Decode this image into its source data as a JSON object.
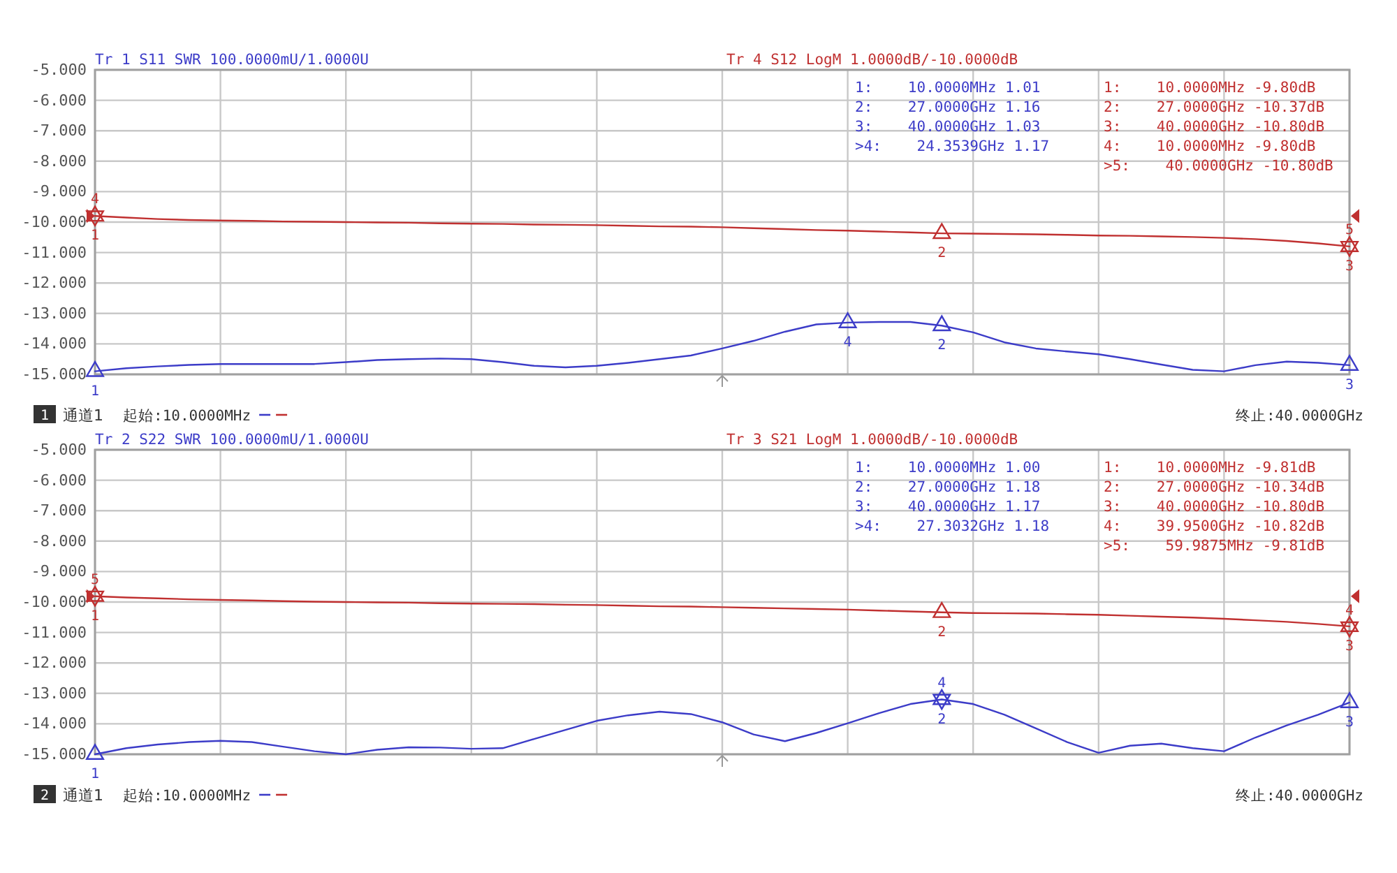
{
  "chart_data": [
    {
      "type": "line",
      "ylim": [
        -15,
        -5
      ],
      "yticks": [
        {
          "value": -5,
          "label": "-5.000"
        },
        {
          "value": -6,
          "label": "-6.000"
        },
        {
          "value": -7,
          "label": "-7.000"
        },
        {
          "value": -8,
          "label": "-8.000"
        },
        {
          "value": -9,
          "label": "-9.000"
        },
        {
          "value": -10,
          "label": "-10.000"
        },
        {
          "value": -11,
          "label": "-11.000"
        },
        {
          "value": -12,
          "label": "-12.000"
        },
        {
          "value": -13,
          "label": "-13.000"
        },
        {
          "value": -14,
          "label": "-14.000"
        },
        {
          "value": -15,
          "label": "-15.000"
        }
      ],
      "categories": [
        null,
        null,
        null,
        null,
        null,
        null,
        null,
        null,
        null,
        null,
        null,
        null,
        null,
        null,
        null,
        null,
        null,
        null,
        null,
        null,
        null,
        null,
        null,
        null,
        null,
        null,
        null,
        null,
        null,
        null,
        null,
        null,
        null,
        null,
        null,
        null,
        null,
        null,
        null,
        null,
        null
      ],
      "tick_labels": "y",
      "grid": true,
      "marker": "none",
      "line_style": "solid",
      "series": [
        {
          "name": "Tr 1  S11 SWR 100.0000mU/1.0000U",
          "color": "#3c3cc8",
          "values": [
            -14.9,
            -14.8,
            -14.74,
            -14.69,
            -14.66,
            -14.66,
            -14.66,
            -14.66,
            -14.6,
            -14.53,
            -14.5,
            -14.48,
            -14.5,
            -14.6,
            -14.72,
            -14.77,
            -14.72,
            -14.62,
            -14.5,
            -14.38,
            -14.15,
            -13.9,
            -13.6,
            -13.36,
            -13.3,
            -13.28,
            -13.28,
            -13.4,
            -13.62,
            -13.95,
            -14.15,
            -14.25,
            -14.34,
            -14.5,
            -14.68,
            -14.85,
            -14.9,
            -14.7,
            -14.58,
            -14.62,
            -14.7
          ]
        },
        {
          "name": "Tr 4  S12 LogM 1.0000dB/-10.0000dB",
          "color": "#c03030",
          "values": [
            -9.8,
            -9.85,
            -9.9,
            -9.93,
            -9.95,
            -9.96,
            -9.98,
            -9.99,
            -10.0,
            -10.01,
            -10.02,
            -10.04,
            -10.05,
            -10.06,
            -10.08,
            -10.09,
            -10.1,
            -10.12,
            -10.14,
            -10.15,
            -10.17,
            -10.2,
            -10.23,
            -10.26,
            -10.28,
            -10.31,
            -10.34,
            -10.37,
            -10.38,
            -10.39,
            -10.4,
            -10.42,
            -10.44,
            -10.45,
            -10.47,
            -10.49,
            -10.52,
            -10.56,
            -10.62,
            -10.7,
            -10.8
          ]
        },
        {
          "type": "scatter",
          "marker": "triangle",
          "color": "#3c3cc8",
          "values": [
            -14.9,
            null,
            null,
            null,
            null,
            null,
            null,
            null,
            null,
            null,
            null,
            null,
            null,
            null,
            null,
            null,
            null,
            null,
            null,
            null,
            null,
            null,
            null,
            null,
            -13.3,
            null,
            null,
            -13.4,
            null,
            null,
            null,
            null,
            null,
            null,
            null,
            null,
            null,
            null,
            null,
            null,
            -14.7
          ]
        },
        {
          "type": "scatter",
          "marker": "triangle",
          "color": "#c03030",
          "values": [
            -9.8,
            null,
            null,
            null,
            null,
            null,
            null,
            null,
            null,
            null,
            null,
            null,
            null,
            null,
            null,
            null,
            null,
            null,
            null,
            null,
            null,
            null,
            null,
            null,
            null,
            null,
            null,
            -10.37,
            null,
            null,
            null,
            null,
            null,
            null,
            null,
            null,
            null,
            null,
            null,
            null,
            -10.8
          ]
        },
        {
          "type": "scatter",
          "marker": "triangle",
          "color": "#c03030",
          "values": [
            -9.8,
            null,
            null,
            null,
            null,
            null,
            null,
            null,
            null,
            null,
            null,
            null,
            null,
            null,
            null,
            null,
            null,
            null,
            null,
            null,
            null,
            null,
            null,
            null,
            null,
            null,
            null,
            null,
            null,
            null,
            null,
            null,
            null,
            null,
            null,
            null,
            null,
            null,
            null,
            null,
            -10.8
          ]
        }
      ],
      "annotations": [
        "1:    10.0000MHz 1.01",
        "2:    27.0000GHz 1.16",
        "3:    40.0000GHz 1.03",
        ">4:    24.3539GHz 1.17",
        "1:    10.0000MHz -9.80dB",
        "2:    27.0000GHz -10.37dB",
        "3:    40.0000GHz -10.80dB",
        "4:    10.0000MHz -9.80dB",
        ">5:    40.0000GHz -10.80dB",
        "1",
        "通道1",
        "起始:10.0000MHz",
        "终止:40.0000GHz",
        {
          "text": "1",
          "y": -14.9
        },
        {
          "text": "4",
          "y": -13.3
        },
        {
          "text": "2",
          "y": -13.4
        },
        {
          "text": "3",
          "y": -14.7
        },
        {
          "text": "1",
          "y": -9.8
        },
        {
          "text": "2",
          "y": -10.37
        },
        {
          "text": "3",
          "y": -10.8
        },
        {
          "text": "4",
          "y": -9.8
        },
        {
          "text": "5",
          "y": -10.8
        }
      ]
    },
    {
      "type": "line",
      "ylim": [
        -15,
        -5
      ],
      "yticks": [
        {
          "value": -5,
          "label": "-5.000"
        },
        {
          "value": -6,
          "label": "-6.000"
        },
        {
          "value": -7,
          "label": "-7.000"
        },
        {
          "value": -8,
          "label": "-8.000"
        },
        {
          "value": -9,
          "label": "-9.000"
        },
        {
          "value": -10,
          "label": "-10.000"
        },
        {
          "value": -11,
          "label": "-11.000"
        },
        {
          "value": -12,
          "label": "-12.000"
        },
        {
          "value": -13,
          "label": "-13.000"
        },
        {
          "value": -14,
          "label": "-14.000"
        },
        {
          "value": -15,
          "label": "-15.000"
        }
      ],
      "categories": [
        null,
        null,
        null,
        null,
        null,
        null,
        null,
        null,
        null,
        null,
        null,
        null,
        null,
        null,
        null,
        null,
        null,
        null,
        null,
        null,
        null,
        null,
        null,
        null,
        null,
        null,
        null,
        null,
        null,
        null,
        null,
        null,
        null,
        null,
        null,
        null,
        null,
        null,
        null,
        null,
        null
      ],
      "tick_labels": "y",
      "grid": true,
      "marker": "none",
      "line_style": "solid",
      "series": [
        {
          "name": "Tr 2  S22 SWR 100.0000mU/1.0000U",
          "color": "#3c3cc8",
          "values": [
            -15,
            -14.8,
            -14.68,
            -14.6,
            -14.56,
            -14.6,
            -14.75,
            -14.9,
            -15,
            -14.85,
            -14.77,
            -14.78,
            -14.82,
            -14.8,
            -14.5,
            -14.2,
            -13.9,
            -13.72,
            -13.6,
            -13.68,
            -13.95,
            -14.35,
            -14.57,
            -14.3,
            -13.98,
            -13.65,
            -13.35,
            -13.2,
            -13.35,
            -13.7,
            -14.15,
            -14.6,
            -14.95,
            -14.72,
            -14.65,
            -14.8,
            -14.9,
            -14.45,
            -14.05,
            -13.7,
            -13.3
          ]
        },
        {
          "name": "Tr 3  S21 LogM 1.0000dB/-10.0000dB",
          "color": "#c03030",
          "values": [
            -9.81,
            -9.85,
            -9.88,
            -9.91,
            -9.93,
            -9.95,
            -9.97,
            -9.99,
            -10.0,
            -10.01,
            -10.02,
            -10.04,
            -10.05,
            -10.06,
            -10.07,
            -10.09,
            -10.1,
            -10.12,
            -10.14,
            -10.15,
            -10.17,
            -10.19,
            -10.21,
            -10.23,
            -10.25,
            -10.28,
            -10.31,
            -10.34,
            -10.36,
            -10.37,
            -10.38,
            -10.4,
            -10.42,
            -10.45,
            -10.48,
            -10.51,
            -10.55,
            -10.6,
            -10.65,
            -10.72,
            -10.8
          ]
        },
        {
          "type": "scatter",
          "marker": "triangle",
          "color": "#3c3cc8",
          "values": [
            -15,
            null,
            null,
            null,
            null,
            null,
            null,
            null,
            null,
            null,
            null,
            null,
            null,
            null,
            null,
            null,
            null,
            null,
            null,
            null,
            null,
            null,
            null,
            null,
            null,
            null,
            null,
            -13.2,
            null,
            null,
            null,
            null,
            null,
            null,
            null,
            null,
            null,
            null,
            null,
            null,
            -13.3
          ]
        },
        {
          "type": "scatter",
          "marker": "triangle",
          "color": "#3c3cc8",
          "values": [
            null,
            null,
            null,
            null,
            null,
            null,
            null,
            null,
            null,
            null,
            null,
            null,
            null,
            null,
            null,
            null,
            null,
            null,
            null,
            null,
            null,
            null,
            null,
            null,
            null,
            null,
            null,
            -13.2,
            null,
            null,
            null,
            null,
            null,
            null,
            null,
            null,
            null,
            null,
            null,
            null,
            null
          ]
        },
        {
          "type": "scatter",
          "marker": "triangle",
          "color": "#c03030",
          "values": [
            -9.81,
            null,
            null,
            null,
            null,
            null,
            null,
            null,
            null,
            null,
            null,
            null,
            null,
            null,
            null,
            null,
            null,
            null,
            null,
            null,
            null,
            null,
            null,
            null,
            null,
            null,
            null,
            -10.34,
            null,
            null,
            null,
            null,
            null,
            null,
            null,
            null,
            null,
            null,
            null,
            null,
            -10.8
          ]
        },
        {
          "type": "scatter",
          "marker": "triangle",
          "color": "#c03030",
          "values": [
            -9.81,
            null,
            null,
            null,
            null,
            null,
            null,
            null,
            null,
            null,
            null,
            null,
            null,
            null,
            null,
            null,
            null,
            null,
            null,
            null,
            null,
            null,
            null,
            null,
            null,
            null,
            null,
            null,
            null,
            null,
            null,
            null,
            null,
            null,
            null,
            null,
            null,
            null,
            null,
            null,
            -10.82
          ]
        }
      ],
      "annotations": [
        "1:    10.0000MHz 1.00",
        "2:    27.0000GHz 1.18",
        "3:    40.0000GHz 1.17",
        ">4:    27.3032GHz 1.18",
        "1:    10.0000MHz -9.81dB",
        "2:    27.0000GHz -10.34dB",
        "3:    40.0000GHz -10.80dB",
        "4:    39.9500GHz -10.82dB",
        ">5:    59.9875MHz -9.81dB",
        "2",
        "通道1",
        "起始:10.0000MHz",
        "终止:40.0000GHz",
        {
          "text": "1",
          "y": -15
        },
        {
          "text": "2",
          "y": -13.2
        },
        {
          "text": "3",
          "y": -13.3
        },
        {
          "text": "4",
          "y": -13.2
        },
        {
          "text": "1",
          "y": -9.81
        },
        {
          "text": "2",
          "y": -10.34
        },
        {
          "text": "3",
          "y": -10.8
        },
        {
          "text": "5",
          "y": -9.81
        },
        {
          "text": "4",
          "y": -10.82
        }
      ]
    }
  ]
}
